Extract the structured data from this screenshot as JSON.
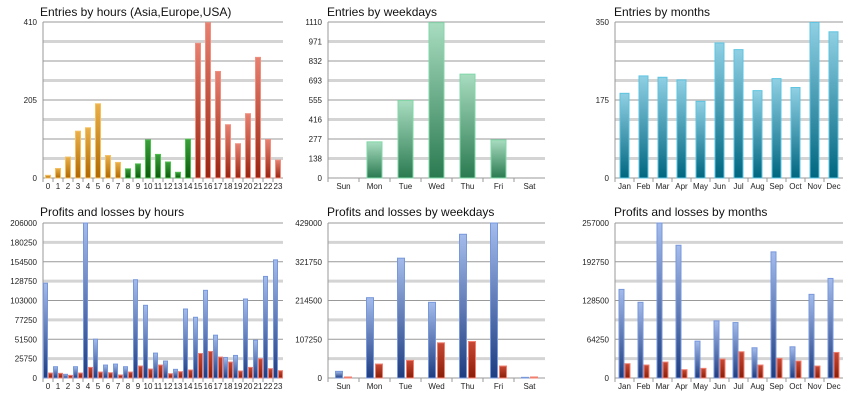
{
  "chart_data": [
    {
      "type": "bar",
      "title": "Entries by hours (Asia,Europe,USA)",
      "categories": [
        "0",
        "1",
        "2",
        "3",
        "4",
        "5",
        "6",
        "7",
        "8",
        "9",
        "10",
        "11",
        "12",
        "13",
        "14",
        "15",
        "16",
        "17",
        "18",
        "19",
        "20",
        "21",
        "22",
        "23"
      ],
      "values": [
        7,
        25,
        55,
        123,
        132,
        195,
        59,
        41,
        24,
        37,
        100,
        62,
        42,
        15,
        102,
        354,
        408,
        280,
        140,
        90,
        169,
        317,
        101,
        47
      ],
      "bar_colors_by_region": [
        "orange",
        "orange",
        "orange",
        "orange",
        "orange",
        "orange",
        "orange",
        "orange",
        "green",
        "green",
        "green",
        "green",
        "green",
        "green",
        "green",
        "red",
        "red",
        "red",
        "red",
        "red",
        "red",
        "red",
        "red",
        "red"
      ],
      "ylim": [
        0,
        410
      ],
      "yticks": [
        "0",
        "205",
        "410"
      ],
      "grid": true
    },
    {
      "type": "bar",
      "title": "Entries by weekdays",
      "categories": [
        "Sun",
        "Mon",
        "Tue",
        "Wed",
        "Thu",
        "Fri",
        "Sat"
      ],
      "values": [
        0,
        257,
        551,
        1105,
        739,
        271,
        0
      ],
      "ylim": [
        0,
        1110
      ],
      "yticks": [
        "0",
        "138",
        "277",
        "416",
        "555",
        "693",
        "832",
        "971",
        "1110"
      ],
      "grid": true
    },
    {
      "type": "bar",
      "title": "Entries by months",
      "categories": [
        "Jan",
        "Feb",
        "Mar",
        "Apr",
        "May",
        "Jun",
        "Jul",
        "Aug",
        "Sep",
        "Oct",
        "Nov",
        "Dec"
      ],
      "values": [
        190,
        229,
        226,
        220,
        172,
        303,
        288,
        196,
        223,
        203,
        349,
        328
      ],
      "ylim": [
        0,
        350
      ],
      "yticks": [
        "0",
        "175",
        "350"
      ],
      "grid": true
    },
    {
      "type": "bar",
      "title": "Profits and losses by hours",
      "categories": [
        "0",
        "1",
        "2",
        "3",
        "4",
        "5",
        "6",
        "7",
        "8",
        "9",
        "10",
        "11",
        "12",
        "13",
        "14",
        "15",
        "16",
        "17",
        "18",
        "19",
        "20",
        "21",
        "22",
        "23"
      ],
      "series": [
        {
          "values": [
            126000,
            15000,
            4900,
            15000,
            206000,
            51600,
            17200,
            18500,
            15000,
            130600,
            96600,
            33100,
            22500,
            11500,
            91700,
            80700,
            116500,
            56900,
            27300,
            30000,
            105000,
            50300,
            135000,
            157000
          ]
        },
        {
          "values": [
            6600,
            6200,
            3500,
            6600,
            14100,
            7900,
            7000,
            4000,
            7900,
            15900,
            11900,
            17200,
            5700,
            8400,
            10600,
            32600,
            35300,
            27800,
            21200,
            9300,
            14100,
            25600,
            12400,
            9700
          ]
        }
      ],
      "ylim": [
        0,
        206000
      ],
      "yticks": [
        "0",
        "25750",
        "51500",
        "77250",
        "103000",
        "128750",
        "154500",
        "180250",
        "206000"
      ],
      "grid": true
    },
    {
      "type": "bar",
      "title": "Profits and losses by weekdays",
      "categories": [
        "Sun",
        "Mon",
        "Tue",
        "Wed",
        "Thu",
        "Fri",
        "Sat"
      ],
      "series": [
        {
          "values": [
            18400,
            222300,
            331600,
            209400,
            397800,
            429000,
            1800
          ]
        },
        {
          "values": [
            2800,
            38600,
            48700,
            97400,
            101000,
            33100,
            2800
          ]
        }
      ],
      "ylim": [
        0,
        429000
      ],
      "yticks": [
        "0",
        "107250",
        "214500",
        "321750",
        "429000"
      ],
      "grid": true
    },
    {
      "type": "bar",
      "title": "Profits and losses by months",
      "categories": [
        "Jan",
        "Feb",
        "Mar",
        "Apr",
        "May",
        "Jun",
        "Jul",
        "Aug",
        "Sep",
        "Oct",
        "Nov",
        "Dec"
      ],
      "series": [
        {
          "values": [
            146900,
            125500,
            257000,
            220100,
            61100,
            94700,
            91900,
            50100,
            209100,
            51700,
            138700,
            165100
          ]
        },
        {
          "values": [
            23700,
            21500,
            26400,
            13800,
            16000,
            31400,
            43500,
            21500,
            32500,
            28100,
            19800,
            42400
          ]
        }
      ],
      "ylim": [
        0,
        257000
      ],
      "yticks": [
        "0",
        "64250",
        "128500",
        "192750",
        "257000"
      ],
      "grid": true
    }
  ],
  "colors": {
    "orange": [
      "#eab04a",
      "#b06800",
      "#f5c060"
    ],
    "green": [
      "#3aa03a",
      "#0a5a0a",
      "#4cc04c"
    ],
    "red": [
      "#e88070",
      "#9a2410",
      "#f09080"
    ],
    "weekday": [
      "#a8dcc0",
      "#2a7a50",
      "#80d8a8"
    ],
    "month": [
      "#90d0e4",
      "#006680",
      "#5cc4e0"
    ],
    "profit": [
      "#a4bcec",
      "#1e3c80",
      "#7898dc"
    ],
    "loss": [
      "#c84834",
      "#8a1e08",
      "#f08070"
    ]
  }
}
